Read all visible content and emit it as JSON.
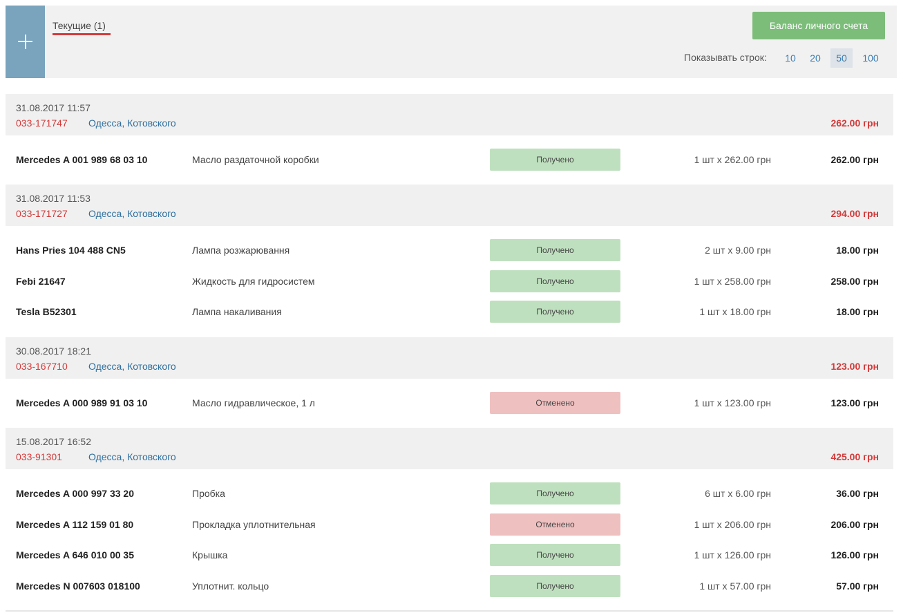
{
  "header": {
    "tab_label": "Текущие (1)",
    "balance_button": "Баланс личного счета",
    "rows_label": "Показывать строк:",
    "rows_options": [
      "10",
      "20",
      "50",
      "100"
    ],
    "rows_selected": "50"
  },
  "orders": [
    {
      "date": "31.08.2017 11:57",
      "number": "033-171747",
      "city": "Одесса, Котовского",
      "total": "262.00 грн",
      "items": [
        {
          "article": "Mercedes A 001 989 68 03 10",
          "name": "Масло раздаточной коробки",
          "status": "Получено",
          "qty": "1 шт x 262.00 грн",
          "sum": "262.00 грн"
        }
      ]
    },
    {
      "date": "31.08.2017 11:53",
      "number": "033-171727",
      "city": "Одесса, Котовского",
      "total": "294.00 грн",
      "items": [
        {
          "article": "Hans Pries 104 488 CN5",
          "name": "Лампа розжарювання",
          "status": "Получено",
          "qty": "2 шт x 9.00 грн",
          "sum": "18.00 грн"
        },
        {
          "article": "Febi 21647",
          "name": "Жидкость для гидросистем",
          "status": "Получено",
          "qty": "1 шт x 258.00 грн",
          "sum": "258.00 грн"
        },
        {
          "article": "Tesla B52301",
          "name": "Лампа накаливания",
          "status": "Получено",
          "qty": "1 шт x 18.00 грн",
          "sum": "18.00 грн"
        }
      ]
    },
    {
      "date": "30.08.2017 18:21",
      "number": "033-167710",
      "city": "Одесса, Котовского",
      "total": "123.00 грн",
      "items": [
        {
          "article": "Mercedes A 000 989 91 03 10",
          "name": "Масло гидравлическое, 1 л",
          "status": "Отменено",
          "qty": "1 шт x 123.00 грн",
          "sum": "123.00 грн"
        }
      ]
    },
    {
      "date": "15.08.2017 16:52",
      "number": "033-91301",
      "city": "Одесса, Котовского",
      "total": "425.00 грн",
      "items": [
        {
          "article": "Mercedes A 000 997 33 20",
          "name": "Пробка",
          "status": "Получено",
          "qty": "6 шт x 6.00 грн",
          "sum": "36.00 грн"
        },
        {
          "article": "Mercedes A 112 159 01 80",
          "name": "Прокладка уплотнительная",
          "status": "Отменено",
          "qty": "1 шт x 206.00 грн",
          "sum": "206.00 грн"
        },
        {
          "article": "Mercedes A 646 010 00 35",
          "name": "Крышка",
          "status": "Получено",
          "qty": "1 шт x 126.00 грн",
          "sum": "126.00 грн"
        },
        {
          "article": "Mercedes N 007603 018100",
          "name": "Уплотнит. кольцо",
          "status": "Получено",
          "qty": "1 шт x 57.00 грн",
          "sum": "57.00 грн"
        }
      ]
    }
  ],
  "colors": {
    "status_received": "#bfe0bf",
    "status_cancelled": "#efc0c0",
    "accent_red": "#d33a3a",
    "link_blue": "#2f6f9e",
    "balance_green": "#7cbd7a",
    "add_button_blue": "#7aa3bd"
  }
}
